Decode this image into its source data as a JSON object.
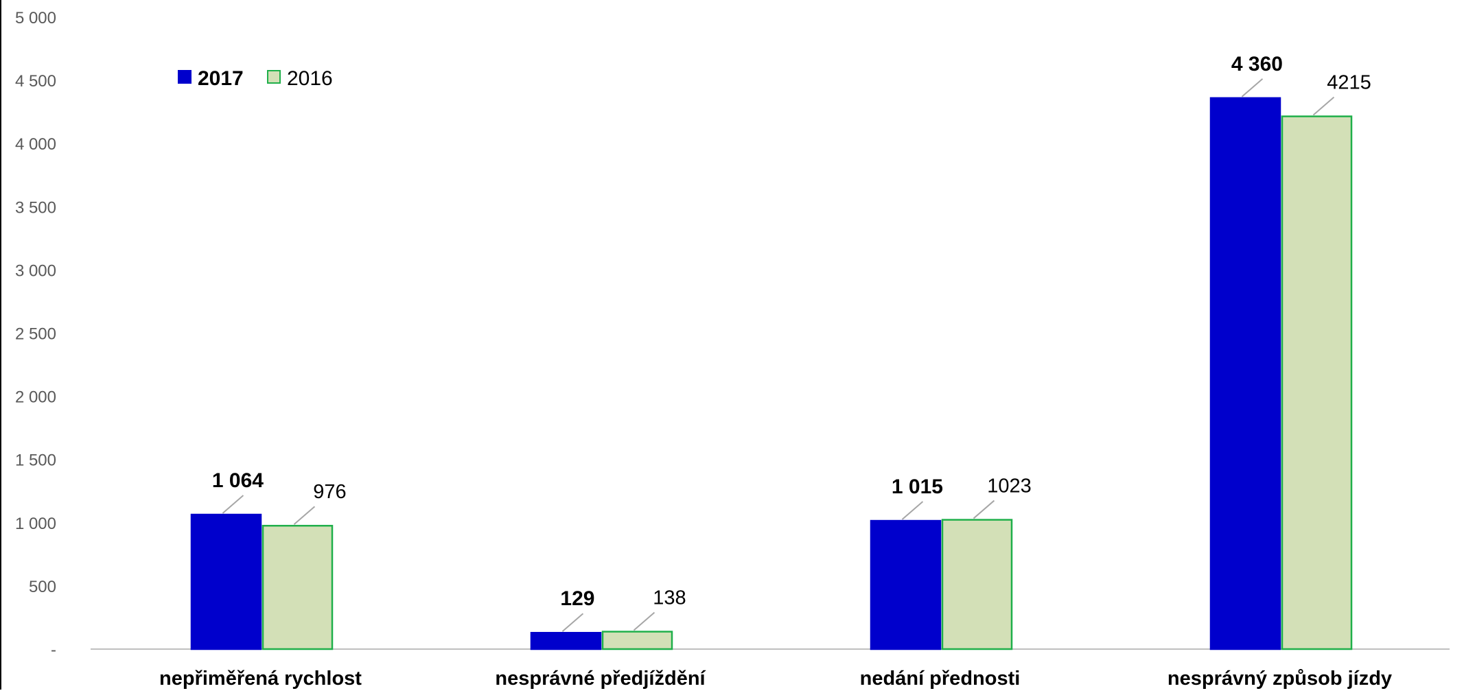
{
  "chart_data": {
    "type": "bar",
    "categories": [
      "nepřiměřená rychlost",
      "nesprávné předjíždění",
      "nedání přednosti",
      "nesprávný způsob jízdy"
    ],
    "series": [
      {
        "name": "2017",
        "values": [
          1064,
          129,
          1015,
          4360
        ],
        "labels": [
          "1 064",
          "129",
          "1 015",
          "4 360"
        ],
        "fill": "#0000CC",
        "stroke": "#0000CC",
        "label_bold": true
      },
      {
        "name": "2016",
        "values": [
          976,
          138,
          1023,
          4215
        ],
        "labels": [
          "976",
          "138",
          "1023",
          "4215"
        ],
        "fill": "#D3E0B7",
        "stroke": "#1FAF4A",
        "label_bold": false
      }
    ],
    "ylim": [
      0,
      5000
    ],
    "yticks": [
      {
        "value": 0,
        "label": "-"
      },
      {
        "value": 500,
        "label": "500"
      },
      {
        "value": 1000,
        "label": "1 000"
      },
      {
        "value": 1500,
        "label": "1 500"
      },
      {
        "value": 2000,
        "label": "2 000"
      },
      {
        "value": 2500,
        "label": "2 500"
      },
      {
        "value": 3000,
        "label": "3 000"
      },
      {
        "value": 3500,
        "label": "3 500"
      },
      {
        "value": 4000,
        "label": "4 000"
      },
      {
        "value": 4500,
        "label": "4 500"
      },
      {
        "value": 5000,
        "label": "5 000"
      }
    ],
    "grid": false,
    "legend_position": "top-left",
    "title": "",
    "xlabel": "",
    "ylabel": ""
  }
}
